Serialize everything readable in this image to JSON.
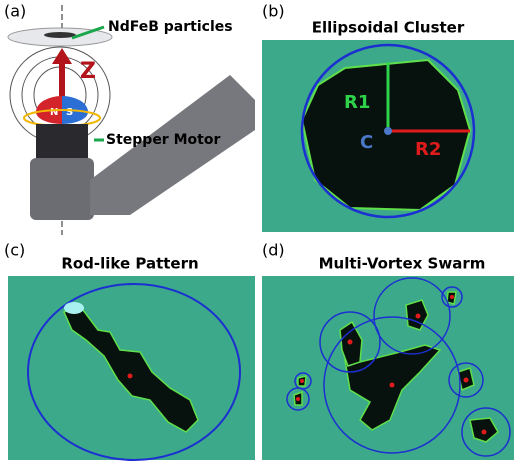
{
  "panels": [
    {
      "label": "(a)",
      "annotations": {
        "particles": "NdFeB particles",
        "axis": "Z",
        "north": "N",
        "south": "S",
        "motor": "Stepper Motor"
      }
    },
    {
      "label": "(b)",
      "title": "Ellipsoidal Cluster",
      "annotations": {
        "r1": "R1",
        "r2": "R2",
        "center": "C"
      }
    },
    {
      "label": "(c)",
      "title": "Rod-like Pattern"
    },
    {
      "label": "(d)",
      "title": "Multi-Vortex Swarm"
    }
  ]
}
